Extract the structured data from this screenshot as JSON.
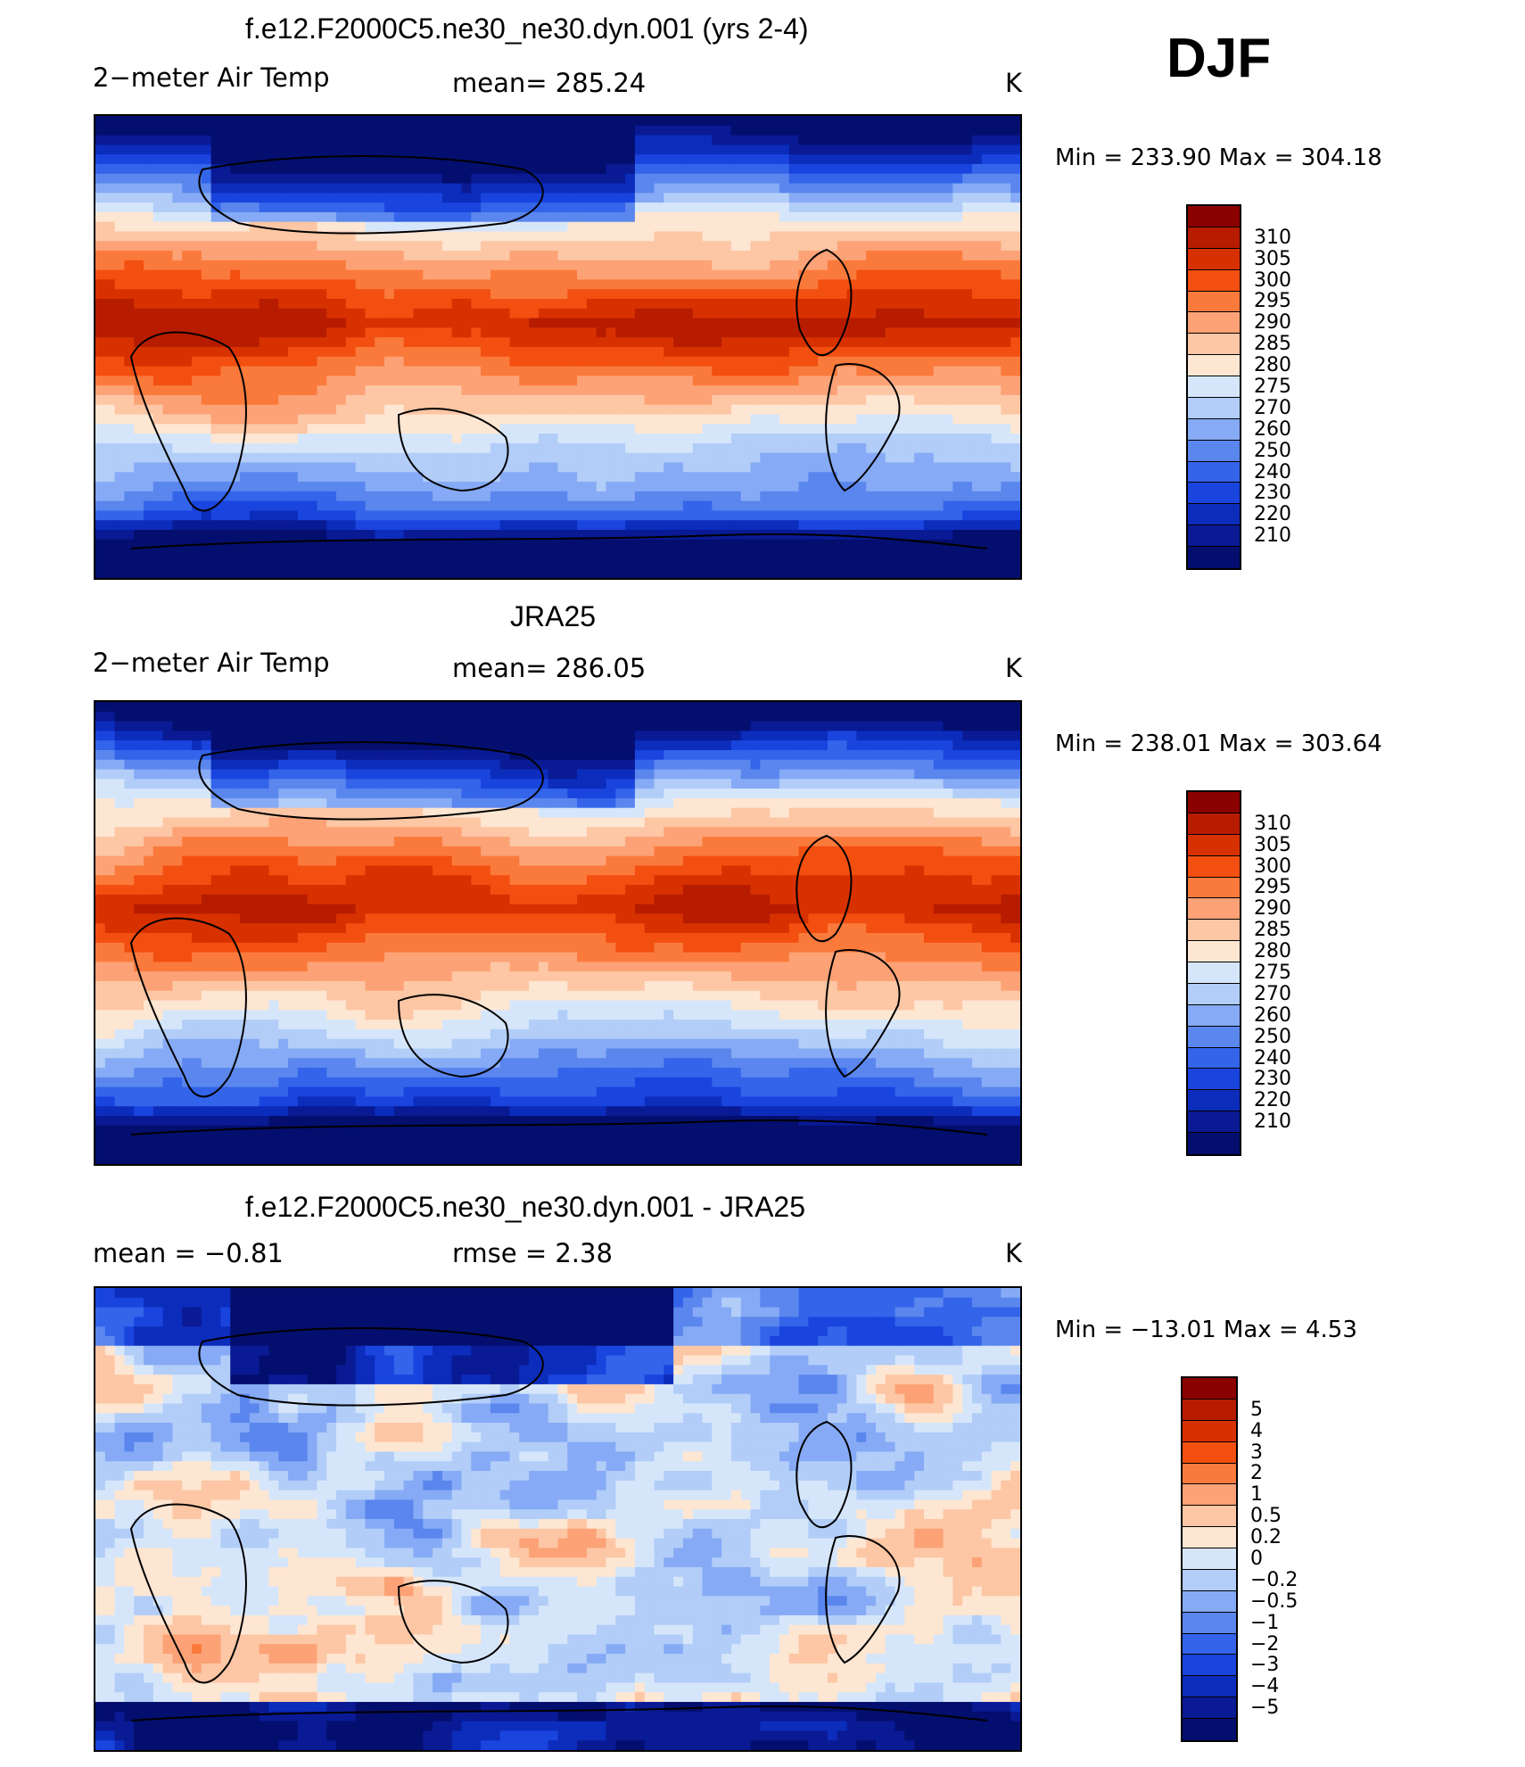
{
  "season": "DJF",
  "panels": [
    {
      "title": "f.e12.F2000C5.ne30_ne30.dyn.001 (yrs 2-4)",
      "left_label": "2−meter Air Temp",
      "center_label": "mean=  285.24",
      "unit": "K",
      "minmax": "Min  =  233.90  Max  =  304.18",
      "field": "model",
      "colorbar": {
        "colors": [
          "#8b0000",
          "#b71c00",
          "#d83100",
          "#f24f10",
          "#fa7a3c",
          "#fca276",
          "#fdc6a4",
          "#fde6d2",
          "#d6e6fa",
          "#b1cdf8",
          "#86aaf5",
          "#5a86ee",
          "#3364ea",
          "#1a44de",
          "#0c2cbc",
          "#091a94",
          "#040e6e"
        ],
        "labels": [
          "310",
          "305",
          "300",
          "295",
          "290",
          "285",
          "280",
          "275",
          "270",
          "260",
          "250",
          "240",
          "230",
          "220",
          "210"
        ]
      }
    },
    {
      "title": "JRA25",
      "left_label": "2−meter Air Temp",
      "center_label": "mean=  286.05",
      "unit": "K",
      "minmax": "Min  =  238.01  Max  =  303.64",
      "field": "obs",
      "colorbar": {
        "colors": [
          "#8b0000",
          "#b71c00",
          "#d83100",
          "#f24f10",
          "#fa7a3c",
          "#fca276",
          "#fdc6a4",
          "#fde6d2",
          "#d6e6fa",
          "#b1cdf8",
          "#86aaf5",
          "#5a86ee",
          "#3364ea",
          "#1a44de",
          "#0c2cbc",
          "#091a94",
          "#040e6e"
        ],
        "labels": [
          "310",
          "305",
          "300",
          "295",
          "290",
          "285",
          "280",
          "275",
          "270",
          "260",
          "250",
          "240",
          "230",
          "220",
          "210"
        ]
      }
    },
    {
      "title": "f.e12.F2000C5.ne30_ne30.dyn.001 - JRA25",
      "left_label": "mean =     −0.81",
      "center_label": "rmse =      2.38",
      "unit": "K",
      "minmax": "Min  =  −13.01  Max  =      4.53",
      "field": "diff",
      "colorbar": {
        "colors": [
          "#8b0000",
          "#b71c00",
          "#d83100",
          "#f24f10",
          "#fa7a3c",
          "#fca276",
          "#fdc6a4",
          "#fde6d2",
          "#d6e6fa",
          "#b1cdf8",
          "#86aaf5",
          "#5a86ee",
          "#3364ea",
          "#1a44de",
          "#0c2cbc",
          "#091a94",
          "#040e6e"
        ],
        "labels": [
          "5",
          "4",
          "3",
          "2",
          "1",
          "0.5",
          "0.2",
          "0",
          "−0.2",
          "−0.5",
          "−1",
          "−2",
          "−3",
          "−4",
          "−5"
        ]
      }
    }
  ]
}
